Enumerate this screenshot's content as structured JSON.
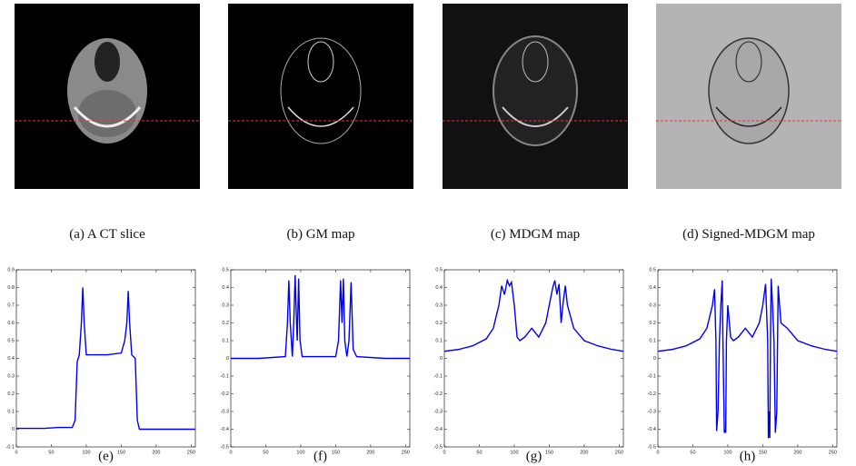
{
  "panels": [
    {
      "caption": "(a) A CT slice"
    },
    {
      "caption": "(b) GM map"
    },
    {
      "caption": "(c) MDGM map"
    },
    {
      "caption": "(d) Signed-MDGM map"
    }
  ],
  "chart_data": [
    {
      "type": "line",
      "caption": "(e)",
      "color": "#0000ee",
      "x": [
        0,
        20,
        40,
        60,
        80,
        84,
        87,
        90,
        93,
        95,
        97,
        100,
        110,
        130,
        150,
        155,
        158,
        160,
        162,
        165,
        170,
        173,
        176,
        180,
        200,
        220,
        240,
        256
      ],
      "values": [
        0.005,
        0.005,
        0.005,
        0.01,
        0.01,
        0.05,
        0.38,
        0.42,
        0.6,
        0.8,
        0.6,
        0.42,
        0.42,
        0.42,
        0.43,
        0.5,
        0.6,
        0.78,
        0.6,
        0.42,
        0.4,
        0.05,
        0,
        0,
        0,
        0,
        0,
        0
      ],
      "xlim": [
        0,
        256
      ],
      "xticks": [
        0,
        50,
        100,
        150,
        200,
        250
      ],
      "ylim": [
        -0.1,
        0.9
      ],
      "yticks": [
        -0.1,
        0,
        0.1,
        0.2,
        0.3,
        0.4,
        0.5,
        0.6,
        0.7,
        0.8,
        0.9
      ]
    },
    {
      "type": "line",
      "caption": "(f)",
      "color": "#0000ee",
      "x": [
        0,
        40,
        78,
        81,
        83,
        85,
        88,
        90,
        92,
        94,
        95,
        97,
        99,
        102,
        150,
        154,
        157,
        159,
        161,
        163,
        166,
        169,
        172,
        175,
        180,
        220,
        256
      ],
      "values": [
        0,
        0,
        0.01,
        0.2,
        0.44,
        0.2,
        0.01,
        0.2,
        0.47,
        0.2,
        0.1,
        0.45,
        0.1,
        0.01,
        0.01,
        0.1,
        0.44,
        0.2,
        0.45,
        0.1,
        0.01,
        0.1,
        0.43,
        0.05,
        0.01,
        0,
        0
      ],
      "xlim": [
        0,
        256
      ],
      "xticks": [
        0,
        50,
        100,
        150,
        200,
        250
      ],
      "ylim": [
        -0.5,
        0.5
      ],
      "yticks": [
        -0.5,
        -0.4,
        -0.3,
        -0.2,
        -0.1,
        0,
        0.1,
        0.2,
        0.3,
        0.4,
        0.5
      ]
    },
    {
      "type": "line",
      "caption": "(g)",
      "color": "#0000ee",
      "x": [
        0,
        20,
        40,
        60,
        70,
        78,
        82,
        86,
        90,
        93,
        96,
        100,
        104,
        108,
        115,
        125,
        135,
        145,
        150,
        155,
        158,
        161,
        164,
        167,
        170,
        173,
        176,
        185,
        200,
        220,
        240,
        256
      ],
      "values": [
        0.04,
        0.05,
        0.07,
        0.11,
        0.17,
        0.3,
        0.41,
        0.36,
        0.44,
        0.41,
        0.43,
        0.3,
        0.12,
        0.1,
        0.12,
        0.17,
        0.12,
        0.2,
        0.3,
        0.4,
        0.44,
        0.36,
        0.42,
        0.2,
        0.32,
        0.41,
        0.3,
        0.17,
        0.1,
        0.07,
        0.05,
        0.04
      ],
      "xlim": [
        0,
        256
      ],
      "xticks": [
        0,
        50,
        100,
        150,
        200,
        250
      ],
      "ylim": [
        -0.5,
        0.5
      ],
      "yticks": [
        -0.5,
        -0.4,
        -0.3,
        -0.2,
        -0.1,
        0,
        0.1,
        0.2,
        0.3,
        0.4,
        0.5
      ]
    },
    {
      "type": "line",
      "caption": "(h)",
      "color": "#0000ee",
      "x": [
        0,
        20,
        40,
        60,
        70,
        78,
        81,
        83,
        84,
        86,
        88,
        90,
        92,
        93,
        95,
        96,
        97,
        98,
        100,
        104,
        108,
        115,
        125,
        135,
        145,
        150,
        154,
        157,
        158,
        159,
        160,
        161,
        162,
        164,
        166,
        168,
        170,
        172,
        174,
        176,
        185,
        200,
        220,
        240,
        256
      ],
      "values": [
        0.04,
        0.05,
        0.07,
        0.11,
        0.17,
        0.3,
        0.39,
        0.1,
        -0.41,
        -0.3,
        0.1,
        0.3,
        0.44,
        0.1,
        -0.42,
        -0.41,
        -0.42,
        0.1,
        0.3,
        0.12,
        0.1,
        0.12,
        0.17,
        0.12,
        0.2,
        0.3,
        0.42,
        0.1,
        -0.45,
        -0.3,
        -0.45,
        0.1,
        0.45,
        0.3,
        0.1,
        -0.42,
        -0.3,
        0.41,
        0.3,
        0.2,
        0.17,
        0.1,
        0.07,
        0.05,
        0.04
      ],
      "xlim": [
        0,
        256
      ],
      "xticks": [
        0,
        50,
        100,
        150,
        200,
        250
      ],
      "ylim": [
        -0.5,
        0.5
      ],
      "yticks": [
        -0.5,
        -0.4,
        -0.3,
        -0.2,
        -0.1,
        0,
        0.1,
        0.2,
        0.3,
        0.4,
        0.5
      ]
    }
  ]
}
